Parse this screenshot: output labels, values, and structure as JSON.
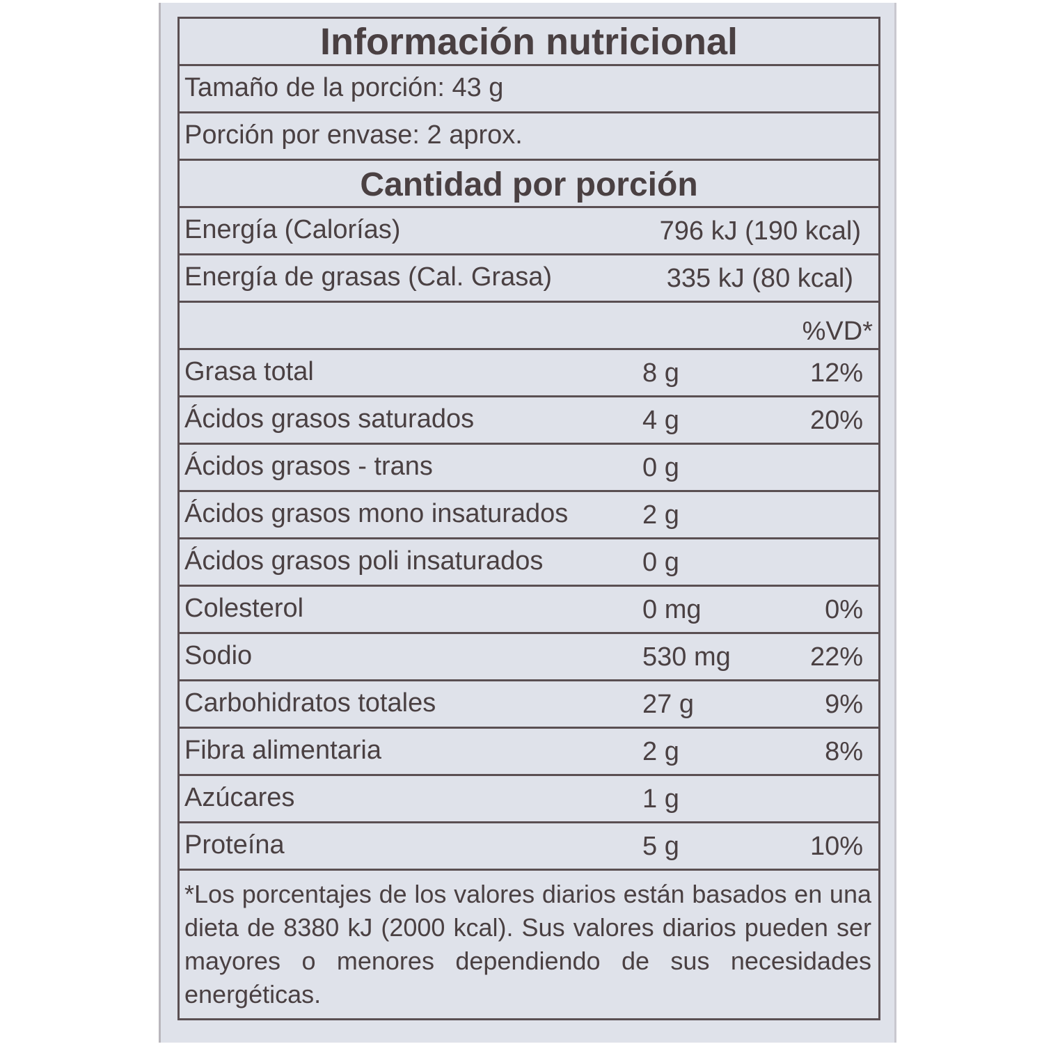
{
  "title": "Información nutricional",
  "serving_size": "Tamaño de la porción: 43 g",
  "servings_per_container": "Porción por envase: 2 aprox.",
  "amount_header": "Cantidad por porción",
  "energy": [
    {
      "label": "Energía (Calorías)",
      "value": "796 kJ (190 kcal)"
    },
    {
      "label": "Energía de grasas (Cal. Grasa)",
      "value": "335 kJ (80 kcal)"
    }
  ],
  "dv_header": "%VD*",
  "nutrients": [
    {
      "label": "Grasa total",
      "amount": "8 g",
      "dv": "12%"
    },
    {
      "label": "Ácidos grasos saturados",
      "amount": "4 g",
      "dv": "20%"
    },
    {
      "label": "Ácidos grasos - trans",
      "amount": "0 g",
      "dv": ""
    },
    {
      "label": "Ácidos grasos mono insaturados",
      "amount": "2 g",
      "dv": ""
    },
    {
      "label": "Ácidos grasos poli insaturados",
      "amount": "0 g",
      "dv": ""
    },
    {
      "label": "Colesterol",
      "amount": "0 mg",
      "dv": "0%"
    },
    {
      "label": "Sodio",
      "amount": "530 mg",
      "dv": "22%"
    },
    {
      "label": "Carbohidratos totales",
      "amount": "27 g",
      "dv": "9%"
    },
    {
      "label": "Fibra alimentaria",
      "amount": "2 g",
      "dv": "8%"
    },
    {
      "label": "Azúcares",
      "amount": "1 g",
      "dv": ""
    },
    {
      "label": "Proteína",
      "amount": "5 g",
      "dv": "10%"
    }
  ],
  "footnote": "*Los porcentajes de los valores diarios están basados en una dieta de 8380 kJ (2000 kcal). Sus valores diarios pueden ser mayores o menores dependiendo de sus necesidades energéticas.",
  "colors": {
    "paper": "#dfe2ea",
    "ink": "#4a4042",
    "rule": "#5a4f52"
  }
}
